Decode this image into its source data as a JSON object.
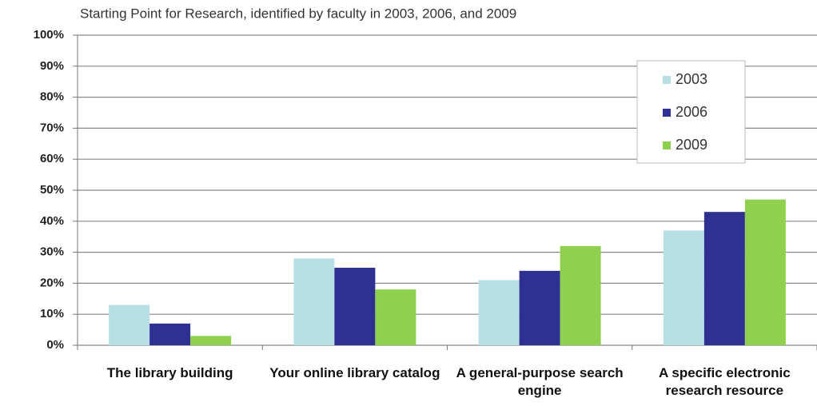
{
  "chart_data": {
    "type": "bar",
    "title": "Starting Point for Research, identified by faculty in 2003, 2006, and 2009",
    "categories": [
      "The library building",
      "Your online library catalog",
      "A general-purpose search engine",
      "A specific electronic research resource"
    ],
    "series": [
      {
        "name": "2003",
        "color": "#b7dfe4",
        "values": [
          13,
          28,
          21,
          37
        ]
      },
      {
        "name": "2006",
        "color": "#2e3192",
        "values": [
          7,
          25,
          24,
          43
        ]
      },
      {
        "name": "2009",
        "color": "#8fd14f",
        "values": [
          3,
          18,
          32,
          47
        ]
      }
    ],
    "ylim": [
      0,
      100
    ],
    "yticks": [
      {
        "value": 0,
        "label": "0%"
      },
      {
        "value": 10,
        "label": "10%"
      },
      {
        "value": 20,
        "label": "20%"
      },
      {
        "value": 30,
        "label": "30%"
      },
      {
        "value": 40,
        "label": "40%"
      },
      {
        "value": 50,
        "label": "50%"
      },
      {
        "value": 60,
        "label": "60%"
      },
      {
        "value": 70,
        "label": "70%"
      },
      {
        "value": 80,
        "label": "80%"
      },
      {
        "value": 90,
        "label": "90%"
      },
      {
        "value": 100,
        "label": "100%"
      }
    ],
    "grid": true,
    "legend": "upper right"
  }
}
